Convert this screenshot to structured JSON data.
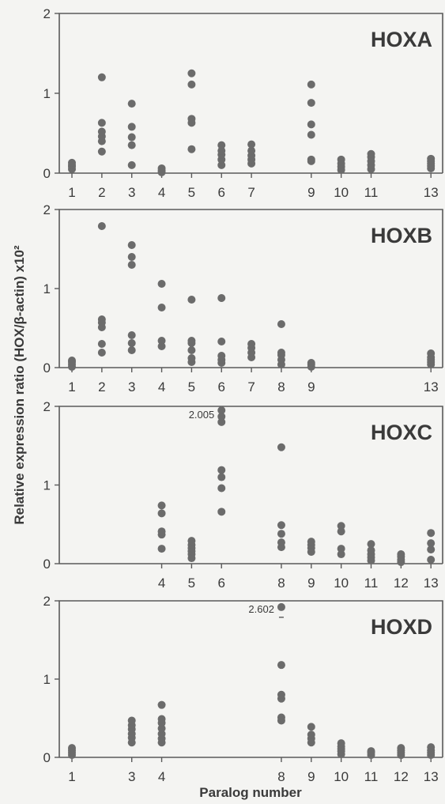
{
  "chart_data": {
    "type": "scatter",
    "ylabel": "Relative expression ratio (HOX/β-actin) x10²",
    "xlabel": "Paralog number",
    "ylim": [
      0,
      2
    ],
    "yticks": [
      0,
      1,
      2
    ],
    "xlim": [
      0.5,
      13.5
    ],
    "grid": false,
    "legend": "none",
    "marker_color": "#6b6b6b",
    "panels": [
      {
        "label": "HOXA",
        "x_ticks": [
          1,
          2,
          3,
          4,
          5,
          6,
          7,
          9,
          10,
          11,
          13
        ],
        "points": [
          {
            "x": 1,
            "y": [
              0.05,
              0.08,
              0.1,
              0.13
            ]
          },
          {
            "x": 2,
            "y": [
              0.27,
              0.4,
              0.46,
              0.52,
              0.63,
              1.2
            ]
          },
          {
            "x": 3,
            "y": [
              0.1,
              0.35,
              0.45,
              0.58,
              0.87
            ]
          },
          {
            "x": 4,
            "y": [
              0.01,
              0.03,
              0.06
            ]
          },
          {
            "x": 5,
            "y": [
              0.3,
              0.63,
              0.68,
              1.11,
              1.25
            ]
          },
          {
            "x": 6,
            "y": [
              0.1,
              0.17,
              0.23,
              0.28,
              0.35
            ]
          },
          {
            "x": 7,
            "y": [
              0.12,
              0.17,
              0.22,
              0.28,
              0.36
            ]
          },
          {
            "x": 9,
            "y": [
              0.15,
              0.17,
              0.48,
              0.61,
              0.88,
              1.11
            ]
          },
          {
            "x": 10,
            "y": [
              0.04,
              0.08,
              0.12,
              0.17
            ]
          },
          {
            "x": 11,
            "y": [
              0.05,
              0.1,
              0.15,
              0.2,
              0.24
            ]
          },
          {
            "x": 13,
            "y": [
              0.06,
              0.09,
              0.12,
              0.15,
              0.18
            ]
          }
        ]
      },
      {
        "label": "HOXB",
        "x_ticks": [
          1,
          2,
          3,
          4,
          5,
          6,
          7,
          8,
          9,
          13
        ],
        "points": [
          {
            "x": 1,
            "y": [
              0.01,
              0.04,
              0.07,
              0.09
            ]
          },
          {
            "x": 2,
            "y": [
              0.19,
              0.3,
              0.51,
              0.57,
              0.61,
              1.79
            ]
          },
          {
            "x": 3,
            "y": [
              0.22,
              0.31,
              0.41,
              1.3,
              1.4,
              1.55
            ]
          },
          {
            "x": 4,
            "y": [
              0.27,
              0.34,
              0.76,
              1.06
            ]
          },
          {
            "x": 5,
            "y": [
              0.07,
              0.12,
              0.22,
              0.31,
              0.34,
              0.86
            ]
          },
          {
            "x": 6,
            "y": [
              0.06,
              0.1,
              0.15,
              0.33,
              0.88
            ]
          },
          {
            "x": 7,
            "y": [
              0.13,
              0.19,
              0.25,
              0.3
            ]
          },
          {
            "x": 8,
            "y": [
              0.04,
              0.1,
              0.16,
              0.19,
              0.55
            ]
          },
          {
            "x": 9,
            "y": [
              0.01,
              0.04,
              0.06
            ]
          },
          {
            "x": 13,
            "y": [
              0.04,
              0.07,
              0.1,
              0.13,
              0.18
            ]
          }
        ]
      },
      {
        "label": "HOXC",
        "x_ticks": [
          4,
          5,
          6,
          8,
          9,
          10,
          11,
          12,
          13
        ],
        "annotation": {
          "text": "2.005",
          "x": 6
        },
        "points": [
          {
            "x": 4,
            "y": [
              0.19,
              0.37,
              0.41,
              0.64,
              0.74
            ]
          },
          {
            "x": 5,
            "y": [
              0.07,
              0.12,
              0.16,
              0.2,
              0.24,
              0.29
            ]
          },
          {
            "x": 6,
            "y": [
              0.66,
              0.96,
              1.1,
              1.19,
              1.8,
              1.87,
              1.95
            ]
          },
          {
            "x": 8,
            "y": [
              0.21,
              0.27,
              0.38,
              0.49,
              1.48
            ]
          },
          {
            "x": 9,
            "y": [
              0.15,
              0.2,
              0.24,
              0.28
            ]
          },
          {
            "x": 10,
            "y": [
              0.12,
              0.19,
              0.41,
              0.48
            ]
          },
          {
            "x": 11,
            "y": [
              0.04,
              0.08,
              0.12,
              0.17,
              0.25
            ]
          },
          {
            "x": 12,
            "y": [
              0.02,
              0.05,
              0.09,
              0.12
            ]
          },
          {
            "x": 13,
            "y": [
              0.05,
              0.18,
              0.26,
              0.39
            ]
          }
        ]
      },
      {
        "label": "HOXD",
        "x_ticks": [
          1,
          3,
          4,
          8,
          9,
          10,
          11,
          12,
          13
        ],
        "annotation": {
          "text": "2.602",
          "x": 8
        },
        "points": [
          {
            "x": 1,
            "y": [
              0.03,
              0.06,
              0.09,
              0.12
            ]
          },
          {
            "x": 3,
            "y": [
              0.19,
              0.25,
              0.3,
              0.36,
              0.41,
              0.47
            ]
          },
          {
            "x": 4,
            "y": [
              0.19,
              0.24,
              0.3,
              0.37,
              0.44,
              0.49,
              0.67
            ]
          },
          {
            "x": 8,
            "y": [
              0.47,
              0.51,
              0.75,
              0.8,
              1.18,
              1.92
            ]
          },
          {
            "x": 9,
            "y": [
              0.19,
              0.24,
              0.29,
              0.39
            ]
          },
          {
            "x": 10,
            "y": [
              0.04,
              0.08,
              0.11,
              0.14,
              0.18
            ]
          },
          {
            "x": 11,
            "y": [
              0.03,
              0.06,
              0.08
            ]
          },
          {
            "x": 12,
            "y": [
              0.03,
              0.06,
              0.09,
              0.12
            ]
          },
          {
            "x": 13,
            "y": [
              0.03,
              0.06,
              0.09,
              0.13
            ]
          }
        ]
      }
    ]
  }
}
